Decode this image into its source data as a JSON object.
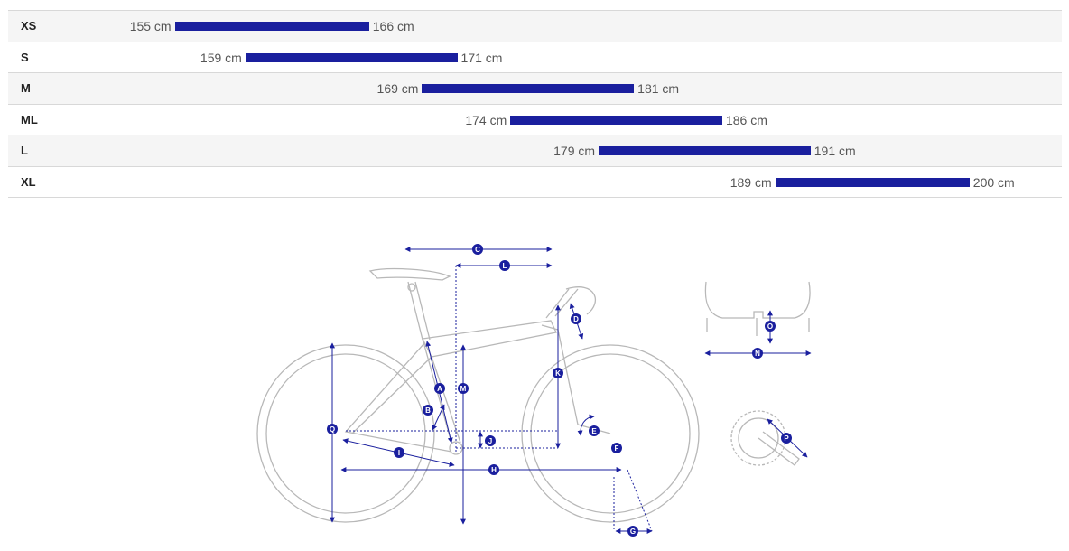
{
  "chart_data": {
    "type": "bar",
    "subtype": "floating-range",
    "orientation": "horizontal",
    "unit": "cm",
    "categories": [
      "XS",
      "S",
      "M",
      "ML",
      "L",
      "XL"
    ],
    "ranges": [
      {
        "min": 155,
        "max": 166
      },
      {
        "min": 159,
        "max": 171
      },
      {
        "min": 169,
        "max": 181
      },
      {
        "min": 174,
        "max": 186
      },
      {
        "min": 179,
        "max": 191
      },
      {
        "min": 189,
        "max": 200
      }
    ],
    "xlim": [
      145,
      205
    ],
    "bar_color": "#1a1f9e",
    "grid": false,
    "legend": "none"
  },
  "geometry": {
    "markers": [
      "C",
      "L",
      "D",
      "A",
      "M",
      "K",
      "B",
      "Q",
      "J",
      "E",
      "F",
      "I",
      "H",
      "G",
      "O",
      "N",
      "P"
    ]
  },
  "colors": {
    "accent": "#1a1f9e",
    "line_art": "#b8b8b8"
  }
}
